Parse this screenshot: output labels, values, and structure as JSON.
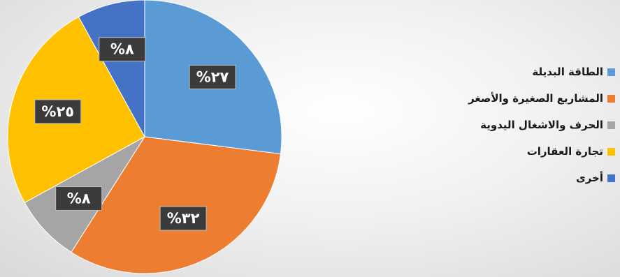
{
  "chart_data": {
    "type": "pie",
    "title": "",
    "categories": [
      "الطاقة البديلة",
      "المشاريع الصغيرة والأصغر",
      "الحرف والاشغال اليدوية",
      "تجارة العقارات",
      "أخرى"
    ],
    "values": [
      27,
      32,
      8,
      25,
      8
    ],
    "data_labels": [
      "%٢٧",
      "%٣٢",
      "%٨",
      "%٢٥",
      "%٨"
    ],
    "colors": [
      "#5b9bd5",
      "#ed7d31",
      "#a5a5a5",
      "#ffc000",
      "#4472c4"
    ],
    "legend_position": "right",
    "start_angle_deg": 0,
    "direction": "clockwise"
  }
}
